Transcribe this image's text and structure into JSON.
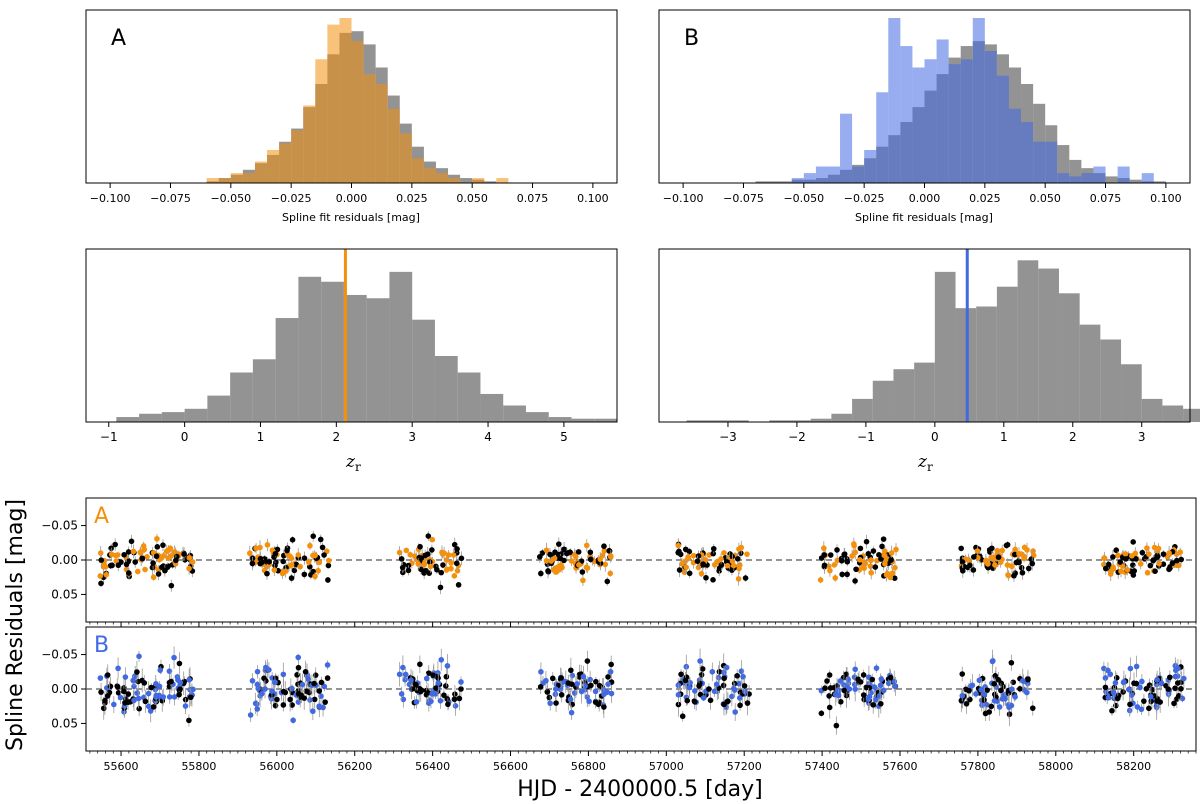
{
  "figure": {
    "colors": {
      "A": "#f4900c",
      "B": "#4169e1",
      "gray": "#808080",
      "black": "#000000"
    },
    "hist_top": [
      {
        "panel_label": "A",
        "xlabel": "Spline fit residuals [mag]",
        "xlim": [
          -0.11,
          0.11
        ],
        "ticks": [
          -0.1,
          -0.075,
          -0.05,
          -0.025,
          0.0,
          0.025,
          0.05,
          0.075,
          0.1
        ],
        "tick_labels": [
          "−0.100",
          "−0.075",
          "−0.050",
          "−0.025",
          "0.000",
          "0.025",
          "0.050",
          "0.075",
          "0.100"
        ],
        "gray_bins": [
          -0.06,
          0.06,
          0.005
        ],
        "gray_values": [
          0.01,
          0.03,
          0.05,
          0.08,
          0.12,
          0.17,
          0.25,
          0.33,
          0.46,
          0.6,
          0.78,
          0.91,
          0.92,
          0.84,
          0.7,
          0.53,
          0.36,
          0.22,
          0.13,
          0.09,
          0.05,
          0.03,
          0.02,
          0.01
        ],
        "color_bins": [
          -0.06,
          0.07,
          0.005
        ],
        "color_values": [
          0.03,
          0.03,
          0.06,
          0.06,
          0.13,
          0.2,
          0.24,
          0.32,
          0.47,
          0.75,
          0.96,
          1.0,
          0.86,
          0.66,
          0.6,
          0.45,
          0.3,
          0.15,
          0.09,
          0.06,
          0.03,
          0.0,
          0.03,
          0.0,
          0.03,
          0.0
        ],
        "color_key": "A"
      },
      {
        "panel_label": "B",
        "xlabel": "Spline fit residuals [mag]",
        "xlim": [
          -0.11,
          0.11
        ],
        "ticks": [
          -0.1,
          -0.075,
          -0.05,
          -0.025,
          0.0,
          0.025,
          0.05,
          0.075,
          0.1
        ],
        "tick_labels": [
          "−0.100",
          "−0.075",
          "−0.050",
          "−0.025",
          "0.000",
          "0.025",
          "0.050",
          "0.075",
          "0.100"
        ],
        "gray_bins": [
          -0.09,
          0.1,
          0.005
        ],
        "gray_values": [
          0.0,
          0.0,
          0.0,
          0.0,
          0.01,
          0.01,
          0.01,
          0.02,
          0.02,
          0.03,
          0.05,
          0.08,
          0.11,
          0.15,
          0.22,
          0.29,
          0.37,
          0.46,
          0.56,
          0.66,
          0.76,
          0.83,
          0.86,
          0.84,
          0.78,
          0.7,
          0.6,
          0.48,
          0.35,
          0.23,
          0.14,
          0.09,
          0.06,
          0.04,
          0.03,
          0.02,
          0.01,
          0.01
        ],
        "color_bins": [
          -0.055,
          0.105,
          0.005
        ],
        "color_values": [
          0.03,
          0.06,
          0.1,
          0.1,
          0.42,
          0.1,
          0.2,
          0.55,
          1.0,
          0.83,
          0.7,
          0.75,
          0.87,
          0.72,
          0.75,
          1.0,
          0.8,
          0.65,
          0.45,
          0.37,
          0.25,
          0.25,
          0.06,
          0.04,
          0.06,
          0.1,
          0.0,
          0.1,
          0.0,
          0.06,
          0.0,
          0.0
        ],
        "color_key": "B"
      }
    ],
    "hist_mid": [
      {
        "xlabel": "z_r",
        "xlabel_main": "z",
        "xlabel_sub": "r",
        "xlim": [
          -1.3,
          5.7
        ],
        "ticks": [
          -1,
          0,
          1,
          2,
          3,
          4,
          5
        ],
        "tick_labels": [
          "−1",
          "0",
          "1",
          "2",
          "3",
          "4",
          "5"
        ],
        "bin_start": -0.9,
        "bin_width": 0.3,
        "values": [
          0.03,
          0.05,
          0.06,
          0.08,
          0.16,
          0.3,
          0.38,
          0.63,
          0.88,
          0.85,
          0.77,
          0.75,
          0.91,
          0.62,
          0.4,
          0.3,
          0.17,
          0.1,
          0.06,
          0.03,
          0.02,
          0.02
        ],
        "vline": 2.12,
        "color_key": "A"
      },
      {
        "xlabel": "z_r",
        "xlabel_main": "z",
        "xlabel_sub": "r",
        "xlim": [
          -4.0,
          3.7
        ],
        "ticks": [
          -3,
          -2,
          -1,
          0,
          1,
          2,
          3
        ],
        "tick_labels": [
          "−3",
          "−2",
          "−1",
          "0",
          "1",
          "2",
          "3"
        ],
        "bin_start": -3.6,
        "bin_width": 0.3,
        "values": [
          0.01,
          0.01,
          0.01,
          0.0,
          0.01,
          0.01,
          0.02,
          0.05,
          0.14,
          0.25,
          0.32,
          0.36,
          0.91,
          0.69,
          0.7,
          0.82,
          0.98,
          0.93,
          0.78,
          0.59,
          0.5,
          0.35,
          0.14,
          0.1,
          0.08
        ],
        "vline": 0.47,
        "color_key": "B"
      }
    ],
    "timeseries": {
      "ylabel": "Spline Residuals [mag]",
      "xlabel": "HJD - 2400000.5 [day]",
      "xlim": [
        55510,
        58360
      ],
      "ylim": [
        0.09,
        -0.09
      ],
      "xticks": [
        55600,
        55800,
        56000,
        56200,
        56400,
        56600,
        56800,
        57000,
        57200,
        57400,
        57600,
        57800,
        58000,
        58200
      ],
      "xtick_labels": [
        "55600",
        "55800",
        "56000",
        "56200",
        "56400",
        "56600",
        "56800",
        "57000",
        "57200",
        "57400",
        "57600",
        "57800",
        "58000",
        "58200"
      ],
      "yticks": [
        -0.05,
        0.0,
        0.05
      ],
      "ytick_labels": [
        "−0.05",
        "0.00",
        "0.05"
      ],
      "seasons": [
        [
          55545,
          55785
        ],
        [
          55930,
          56135
        ],
        [
          56315,
          56475
        ],
        [
          56675,
          56860
        ],
        [
          57030,
          57215
        ],
        [
          57395,
          57590
        ],
        [
          57755,
          57945
        ],
        [
          58120,
          58330
        ]
      ],
      "panels": [
        {
          "label": "A",
          "color_key": "A",
          "scatter_color": 0.011,
          "scatter_black": 0.012,
          "error": 0.006,
          "seed": 11
        },
        {
          "label": "B",
          "color_key": "B",
          "scatter_color": 0.016,
          "scatter_black": 0.016,
          "error": 0.01,
          "seed": 29
        }
      ]
    }
  }
}
